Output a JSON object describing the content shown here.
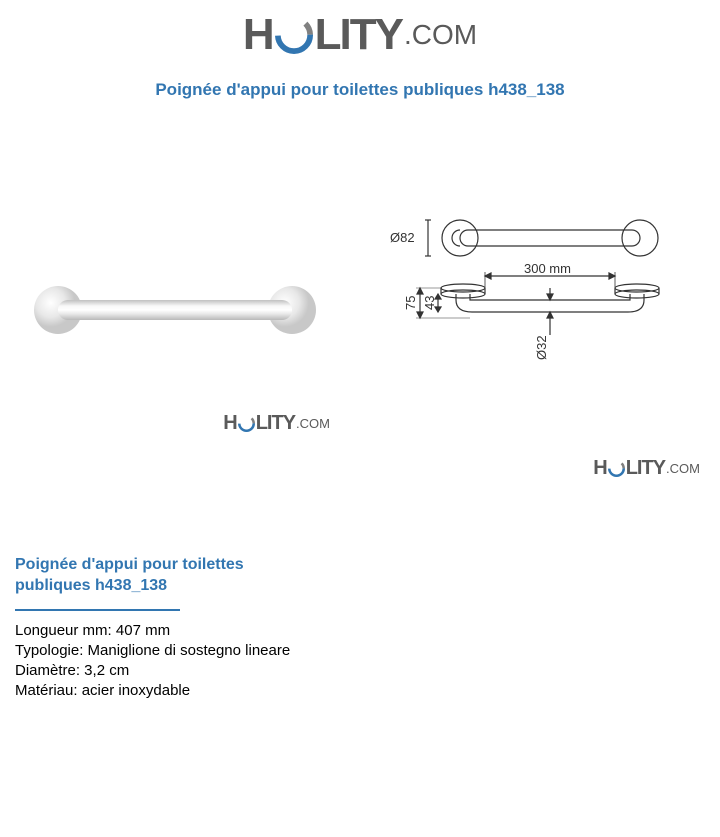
{
  "brand": {
    "name_part1": "H",
    "name_part2": "LITY",
    "suffix": ".COM",
    "logo_ring_color_outer": "#808080",
    "logo_ring_color_inner": "#3276b1"
  },
  "product": {
    "title": "Poignée d'appui pour toilettes publiques h438_138"
  },
  "photo": {
    "bar_color": "#d8d8d8",
    "bar_highlight": "#f5f5f5",
    "flange_color": "#e8e8e8",
    "flange_highlight": "#ffffff"
  },
  "diagram": {
    "flange_diameter_label": "Ø82",
    "bar_length_label": "300 mm",
    "height_label": "75",
    "offset_label": "43",
    "bar_diameter_label": "Ø32",
    "stroke_color": "#333333",
    "text_color": "#333333",
    "font_size": 13
  },
  "details": {
    "title": "Poignée d'appui pour toilettes publiques h438_138",
    "divider_color": "#3276b1",
    "specs": [
      {
        "label": "Longueur mm",
        "value": "407 mm"
      },
      {
        "label": "Typologie",
        "value": "Maniglione di sostegno lineare"
      },
      {
        "label": "Diamètre",
        "value": "3,2 cm"
      },
      {
        "label": "Matériau",
        "value": "acier inoxydable"
      }
    ]
  },
  "colors": {
    "title_blue": "#3276b1",
    "text_black": "#000000",
    "logo_gray": "#5a5a5a"
  }
}
